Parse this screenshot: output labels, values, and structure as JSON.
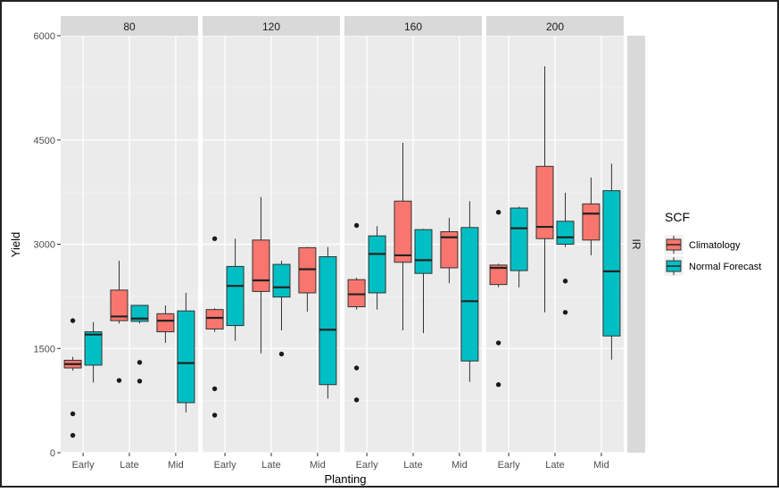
{
  "chart_data": {
    "type": "boxplot",
    "xlabel": "Planting",
    "ylabel": "Yield",
    "ylim": [
      0,
      6000
    ],
    "yticks": [
      0,
      1500,
      3000,
      4500,
      6000
    ],
    "categories": [
      "Early",
      "Late",
      "Mid"
    ],
    "row_facet": "IR",
    "legend": {
      "title": "SCF",
      "placement": "right",
      "entries": [
        {
          "name": "Climatology",
          "color": "#F8766D"
        },
        {
          "name": "Normal Forecast",
          "color": "#00BFC4"
        }
      ]
    },
    "panels": [
      {
        "label": "80",
        "boxes": [
          {
            "category": "Early",
            "series": "Climatology",
            "min": 1180,
            "q1": 1220,
            "median": 1275,
            "q3": 1330,
            "max": 1380,
            "outliers": [
              250,
              560,
              1900
            ]
          },
          {
            "category": "Early",
            "series": "Normal Forecast",
            "min": 1010,
            "q1": 1260,
            "median": 1700,
            "q3": 1740,
            "max": 1880,
            "outliers": []
          },
          {
            "category": "Late",
            "series": "Climatology",
            "min": 1860,
            "q1": 1900,
            "median": 1960,
            "q3": 2340,
            "max": 2760,
            "outliers": [
              1040
            ]
          },
          {
            "category": "Late",
            "series": "Normal Forecast",
            "min": 1860,
            "q1": 1890,
            "median": 1930,
            "q3": 2120,
            "max": 2120,
            "outliers": [
              1030,
              1300
            ]
          },
          {
            "category": "Mid",
            "series": "Climatology",
            "min": 1580,
            "q1": 1740,
            "median": 1900,
            "q3": 2000,
            "max": 2120,
            "outliers": []
          },
          {
            "category": "Mid",
            "series": "Normal Forecast",
            "min": 580,
            "q1": 720,
            "median": 1290,
            "q3": 2040,
            "max": 2300,
            "outliers": []
          }
        ]
      },
      {
        "label": "120",
        "boxes": [
          {
            "category": "Early",
            "series": "Climatology",
            "min": 1740,
            "q1": 1780,
            "median": 1940,
            "q3": 2060,
            "max": 2080,
            "outliers": [
              540,
              920,
              3080
            ]
          },
          {
            "category": "Early",
            "series": "Normal Forecast",
            "min": 1610,
            "q1": 1830,
            "median": 2400,
            "q3": 2680,
            "max": 3080,
            "outliers": []
          },
          {
            "category": "Late",
            "series": "Climatology",
            "min": 1430,
            "q1": 2320,
            "median": 2480,
            "q3": 3060,
            "max": 3680,
            "outliers": []
          },
          {
            "category": "Late",
            "series": "Normal Forecast",
            "min": 1760,
            "q1": 2240,
            "median": 2380,
            "q3": 2710,
            "max": 2760,
            "outliers": [
              1420
            ]
          },
          {
            "category": "Mid",
            "series": "Climatology",
            "min": 2030,
            "q1": 2300,
            "median": 2640,
            "q3": 2950,
            "max": 2960,
            "outliers": []
          },
          {
            "category": "Mid",
            "series": "Normal Forecast",
            "min": 780,
            "q1": 980,
            "median": 1770,
            "q3": 2820,
            "max": 2960,
            "outliers": []
          }
        ]
      },
      {
        "label": "160",
        "boxes": [
          {
            "category": "Early",
            "series": "Climatology",
            "min": 2060,
            "q1": 2100,
            "median": 2280,
            "q3": 2490,
            "max": 2520,
            "outliers": [
              760,
              1220,
              3270
            ]
          },
          {
            "category": "Early",
            "series": "Normal Forecast",
            "min": 2060,
            "q1": 2300,
            "median": 2860,
            "q3": 3120,
            "max": 3260,
            "outliers": []
          },
          {
            "category": "Late",
            "series": "Climatology",
            "min": 1760,
            "q1": 2740,
            "median": 2840,
            "q3": 3620,
            "max": 4460,
            "outliers": []
          },
          {
            "category": "Late",
            "series": "Normal Forecast",
            "min": 1720,
            "q1": 2580,
            "median": 2770,
            "q3": 3210,
            "max": 3220,
            "outliers": []
          },
          {
            "category": "Mid",
            "series": "Climatology",
            "min": 2440,
            "q1": 2660,
            "median": 3100,
            "q3": 3180,
            "max": 3380,
            "outliers": []
          },
          {
            "category": "Mid",
            "series": "Normal Forecast",
            "min": 1020,
            "q1": 1320,
            "median": 2180,
            "q3": 3240,
            "max": 3620,
            "outliers": []
          }
        ]
      },
      {
        "label": "200",
        "boxes": [
          {
            "category": "Early",
            "series": "Climatology",
            "min": 2380,
            "q1": 2420,
            "median": 2660,
            "q3": 2700,
            "max": 2720,
            "outliers": [
              980,
              1580,
              3460
            ]
          },
          {
            "category": "Early",
            "series": "Normal Forecast",
            "min": 2380,
            "q1": 2620,
            "median": 3230,
            "q3": 3520,
            "max": 3540,
            "outliers": []
          },
          {
            "category": "Late",
            "series": "Climatology",
            "min": 2020,
            "q1": 3080,
            "median": 3250,
            "q3": 4120,
            "max": 5560,
            "outliers": []
          },
          {
            "category": "Late",
            "series": "Normal Forecast",
            "min": 2960,
            "q1": 3000,
            "median": 3100,
            "q3": 3330,
            "max": 3740,
            "outliers": [
              2020,
              2470
            ]
          },
          {
            "category": "Mid",
            "series": "Climatology",
            "min": 2840,
            "q1": 3060,
            "median": 3440,
            "q3": 3580,
            "max": 3960,
            "outliers": []
          },
          {
            "category": "Mid",
            "series": "Normal Forecast",
            "min": 1340,
            "q1": 1680,
            "median": 2610,
            "q3": 3770,
            "max": 4160,
            "outliers": []
          }
        ]
      }
    ]
  }
}
